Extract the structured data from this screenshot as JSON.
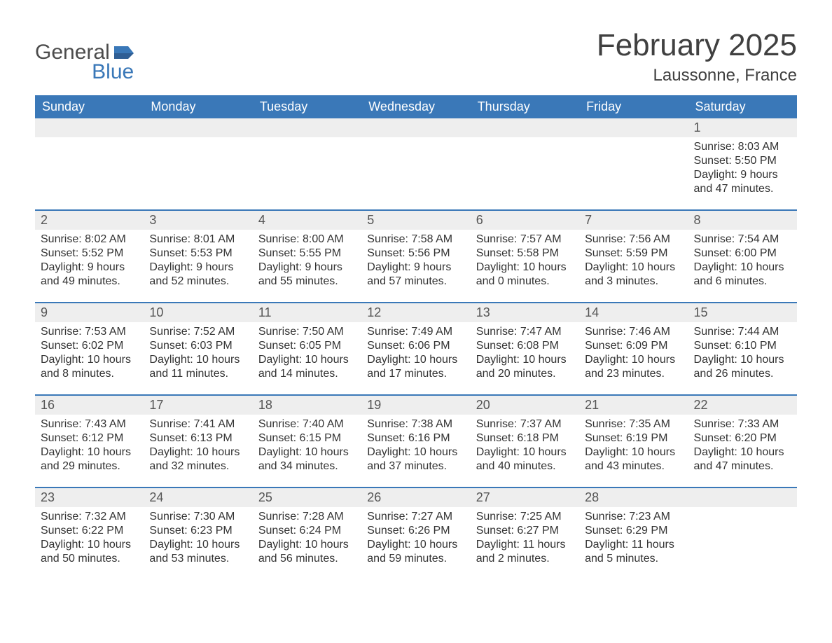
{
  "brand": {
    "word1": "General",
    "word2": "Blue",
    "color_general": "#4c4c4c",
    "color_blue": "#3a78b8"
  },
  "title": "February 2025",
  "location": "Laussonne, France",
  "colors": {
    "header_bg": "#3a78b8",
    "header_text": "#ffffff",
    "row_border": "#3a78b8",
    "daynum_bg": "#eeeeee",
    "body_text": "#333333",
    "page_bg": "#ffffff"
  },
  "weekdays": [
    "Sunday",
    "Monday",
    "Tuesday",
    "Wednesday",
    "Thursday",
    "Friday",
    "Saturday"
  ],
  "calendar": {
    "type": "table",
    "columns": 7,
    "start_weekday": "Sunday",
    "first_of_month_weekday_index": 6,
    "weeks": [
      [
        null,
        null,
        null,
        null,
        null,
        null,
        {
          "n": "1",
          "sunrise": "Sunrise: 8:03 AM",
          "sunset": "Sunset: 5:50 PM",
          "daylight": "Daylight: 9 hours and 47 minutes."
        }
      ],
      [
        {
          "n": "2",
          "sunrise": "Sunrise: 8:02 AM",
          "sunset": "Sunset: 5:52 PM",
          "daylight": "Daylight: 9 hours and 49 minutes."
        },
        {
          "n": "3",
          "sunrise": "Sunrise: 8:01 AM",
          "sunset": "Sunset: 5:53 PM",
          "daylight": "Daylight: 9 hours and 52 minutes."
        },
        {
          "n": "4",
          "sunrise": "Sunrise: 8:00 AM",
          "sunset": "Sunset: 5:55 PM",
          "daylight": "Daylight: 9 hours and 55 minutes."
        },
        {
          "n": "5",
          "sunrise": "Sunrise: 7:58 AM",
          "sunset": "Sunset: 5:56 PM",
          "daylight": "Daylight: 9 hours and 57 minutes."
        },
        {
          "n": "6",
          "sunrise": "Sunrise: 7:57 AM",
          "sunset": "Sunset: 5:58 PM",
          "daylight": "Daylight: 10 hours and 0 minutes."
        },
        {
          "n": "7",
          "sunrise": "Sunrise: 7:56 AM",
          "sunset": "Sunset: 5:59 PM",
          "daylight": "Daylight: 10 hours and 3 minutes."
        },
        {
          "n": "8",
          "sunrise": "Sunrise: 7:54 AM",
          "sunset": "Sunset: 6:00 PM",
          "daylight": "Daylight: 10 hours and 6 minutes."
        }
      ],
      [
        {
          "n": "9",
          "sunrise": "Sunrise: 7:53 AM",
          "sunset": "Sunset: 6:02 PM",
          "daylight": "Daylight: 10 hours and 8 minutes."
        },
        {
          "n": "10",
          "sunrise": "Sunrise: 7:52 AM",
          "sunset": "Sunset: 6:03 PM",
          "daylight": "Daylight: 10 hours and 11 minutes."
        },
        {
          "n": "11",
          "sunrise": "Sunrise: 7:50 AM",
          "sunset": "Sunset: 6:05 PM",
          "daylight": "Daylight: 10 hours and 14 minutes."
        },
        {
          "n": "12",
          "sunrise": "Sunrise: 7:49 AM",
          "sunset": "Sunset: 6:06 PM",
          "daylight": "Daylight: 10 hours and 17 minutes."
        },
        {
          "n": "13",
          "sunrise": "Sunrise: 7:47 AM",
          "sunset": "Sunset: 6:08 PM",
          "daylight": "Daylight: 10 hours and 20 minutes."
        },
        {
          "n": "14",
          "sunrise": "Sunrise: 7:46 AM",
          "sunset": "Sunset: 6:09 PM",
          "daylight": "Daylight: 10 hours and 23 minutes."
        },
        {
          "n": "15",
          "sunrise": "Sunrise: 7:44 AM",
          "sunset": "Sunset: 6:10 PM",
          "daylight": "Daylight: 10 hours and 26 minutes."
        }
      ],
      [
        {
          "n": "16",
          "sunrise": "Sunrise: 7:43 AM",
          "sunset": "Sunset: 6:12 PM",
          "daylight": "Daylight: 10 hours and 29 minutes."
        },
        {
          "n": "17",
          "sunrise": "Sunrise: 7:41 AM",
          "sunset": "Sunset: 6:13 PM",
          "daylight": "Daylight: 10 hours and 32 minutes."
        },
        {
          "n": "18",
          "sunrise": "Sunrise: 7:40 AM",
          "sunset": "Sunset: 6:15 PM",
          "daylight": "Daylight: 10 hours and 34 minutes."
        },
        {
          "n": "19",
          "sunrise": "Sunrise: 7:38 AM",
          "sunset": "Sunset: 6:16 PM",
          "daylight": "Daylight: 10 hours and 37 minutes."
        },
        {
          "n": "20",
          "sunrise": "Sunrise: 7:37 AM",
          "sunset": "Sunset: 6:18 PM",
          "daylight": "Daylight: 10 hours and 40 minutes."
        },
        {
          "n": "21",
          "sunrise": "Sunrise: 7:35 AM",
          "sunset": "Sunset: 6:19 PM",
          "daylight": "Daylight: 10 hours and 43 minutes."
        },
        {
          "n": "22",
          "sunrise": "Sunrise: 7:33 AM",
          "sunset": "Sunset: 6:20 PM",
          "daylight": "Daylight: 10 hours and 47 minutes."
        }
      ],
      [
        {
          "n": "23",
          "sunrise": "Sunrise: 7:32 AM",
          "sunset": "Sunset: 6:22 PM",
          "daylight": "Daylight: 10 hours and 50 minutes."
        },
        {
          "n": "24",
          "sunrise": "Sunrise: 7:30 AM",
          "sunset": "Sunset: 6:23 PM",
          "daylight": "Daylight: 10 hours and 53 minutes."
        },
        {
          "n": "25",
          "sunrise": "Sunrise: 7:28 AM",
          "sunset": "Sunset: 6:24 PM",
          "daylight": "Daylight: 10 hours and 56 minutes."
        },
        {
          "n": "26",
          "sunrise": "Sunrise: 7:27 AM",
          "sunset": "Sunset: 6:26 PM",
          "daylight": "Daylight: 10 hours and 59 minutes."
        },
        {
          "n": "27",
          "sunrise": "Sunrise: 7:25 AM",
          "sunset": "Sunset: 6:27 PM",
          "daylight": "Daylight: 11 hours and 2 minutes."
        },
        {
          "n": "28",
          "sunrise": "Sunrise: 7:23 AM",
          "sunset": "Sunset: 6:29 PM",
          "daylight": "Daylight: 11 hours and 5 minutes."
        },
        null
      ]
    ]
  }
}
